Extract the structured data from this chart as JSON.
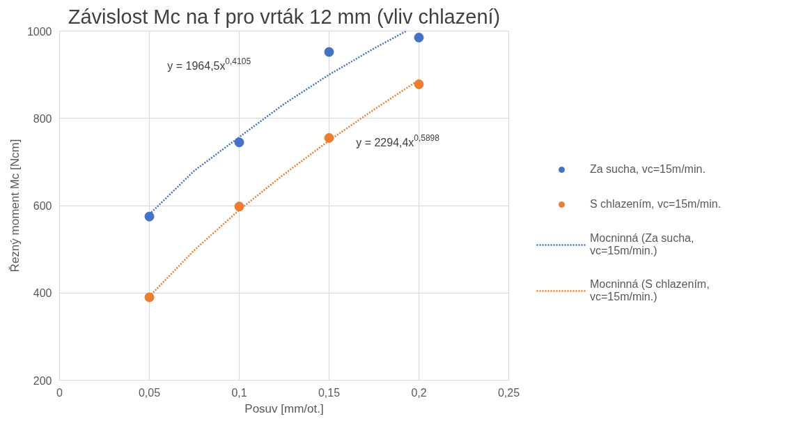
{
  "chart_data": {
    "type": "scatter",
    "title": "Závislost Mc na f pro vrták 12 mm (vliv chlazení)",
    "xlabel": "Posuv [mm/ot.]",
    "ylabel": "Řezný moment Mc [Ncm]",
    "x": [
      0.05,
      0.1,
      0.15,
      0.2
    ],
    "series": [
      {
        "name": "Za sucha, vc=15m/min.",
        "color": "#4472c4",
        "values": [
          575,
          745,
          952,
          985
        ]
      },
      {
        "name": "S chlazením, vc=15m/min.",
        "color": "#ed7d31",
        "values": [
          390,
          598,
          755,
          878
        ]
      },
      {
        "type": "line",
        "name": "Mocninná (Za sucha, vc=15m/min.)",
        "color": "#4472c4",
        "line_style": "dotted",
        "x": [
          0.05,
          0.075,
          0.1,
          0.125,
          0.15,
          0.175,
          0.193
        ],
        "values": [
          580,
          680,
          757,
          833,
          900,
          960,
          1000
        ]
      },
      {
        "type": "line",
        "name": "Mocninná (S chlazením, vc=15m/min.)",
        "color": "#ed7d31",
        "line_style": "dotted",
        "x": [
          0.05,
          0.075,
          0.1,
          0.125,
          0.15,
          0.175,
          0.2
        ],
        "values": [
          392,
          498,
          590,
          672,
          749,
          820,
          888
        ]
      }
    ],
    "annotations": [
      "y = 1964,5x$^{0,4105}$",
      "y = 2294,4x$^{0,5898}$"
    ],
    "legend": "right",
    "grid": true,
    "xlim": [
      0,
      0.25
    ],
    "xticks": [
      {
        "value": 0,
        "label": "0"
      },
      {
        "value": 0.05,
        "label": "0,05"
      },
      {
        "value": 0.1,
        "label": "0,1"
      },
      {
        "value": 0.15,
        "label": "0,15"
      },
      {
        "value": 0.2,
        "label": "0,2"
      },
      {
        "value": 0.25,
        "label": "0,25"
      }
    ],
    "ylim": [
      200,
      1000
    ],
    "yticks": [
      200,
      400,
      600,
      800,
      1000
    ]
  }
}
